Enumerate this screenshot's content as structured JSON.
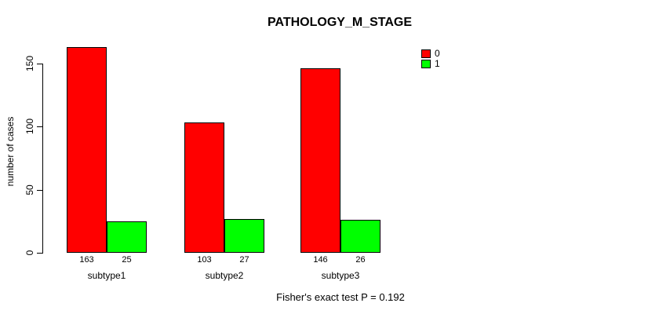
{
  "chart_data": {
    "type": "bar",
    "title": "PATHOLOGY_M_STAGE",
    "xlabel": "",
    "ylabel": "number of cases",
    "categories": [
      "subtype1",
      "subtype2",
      "subtype3"
    ],
    "series": [
      {
        "name": "0",
        "color": "#ff0000",
        "values": [
          163,
          103,
          146
        ]
      },
      {
        "name": "1",
        "color": "#00ff00",
        "values": [
          25,
          27,
          26
        ]
      }
    ],
    "bar_count_labels": [
      [
        "163",
        "103",
        "146"
      ],
      [
        "25",
        "27",
        "26"
      ]
    ],
    "ylim": [
      0,
      150
    ],
    "yticks": [
      0,
      50,
      100,
      150
    ],
    "grid": false,
    "legend_position": "top-right",
    "annotation": "Fisher's exact test P = 0.192"
  }
}
